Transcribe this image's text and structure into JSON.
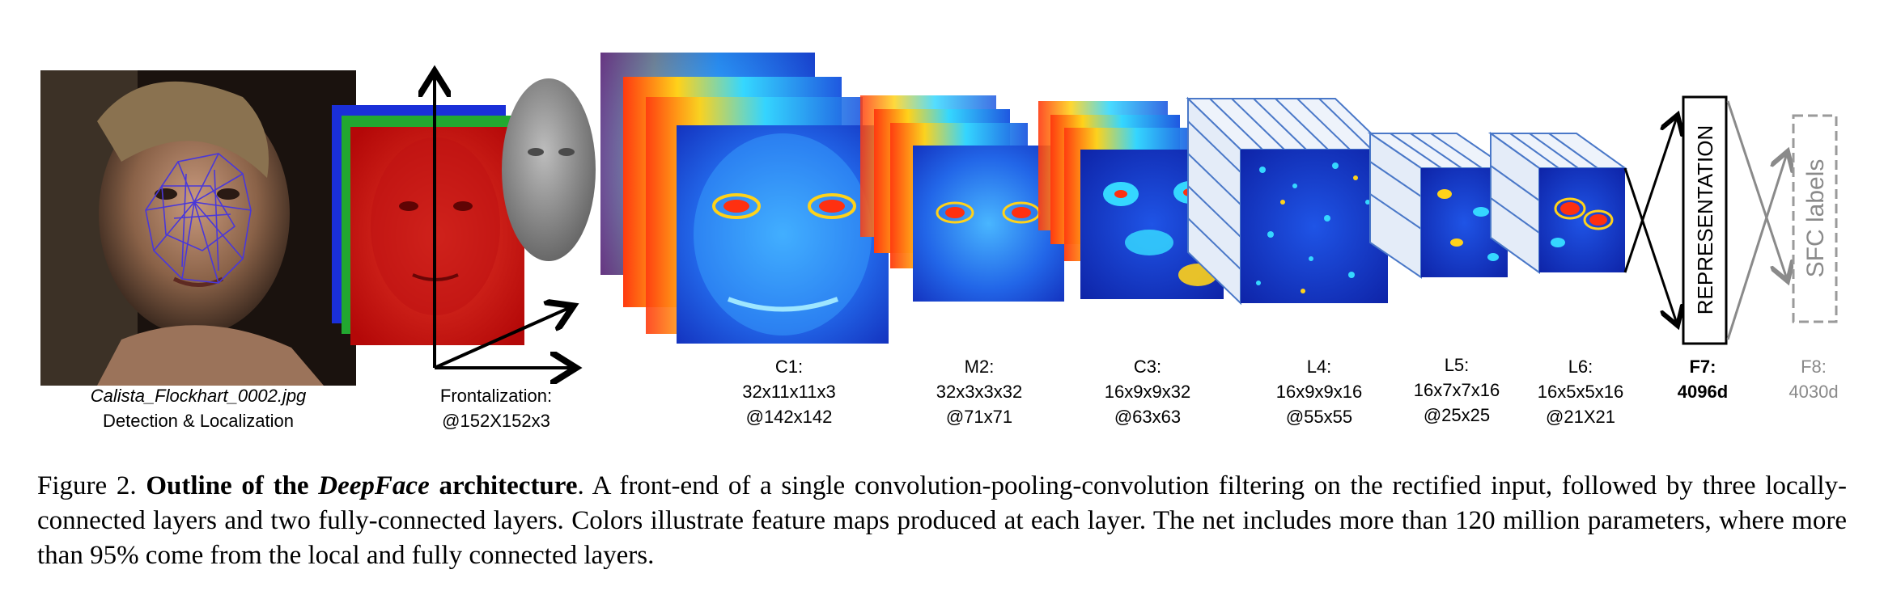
{
  "figure": {
    "input": {
      "filename": "Calista_Flockhart_0002.jpg",
      "label": "Detection & Localization"
    },
    "frontalization": {
      "label": "Frontalization:",
      "size": "@152X152x3"
    },
    "layers": [
      {
        "name": "C1:",
        "params": "32x11x11x3",
        "size": "@142x142"
      },
      {
        "name": "M2:",
        "params": "32x3x3x32",
        "size": "@71x71"
      },
      {
        "name": "C3:",
        "params": "16x9x9x32",
        "size": "@63x63"
      },
      {
        "name": "L4:",
        "params": "16x9x9x16",
        "size": "@55x55"
      },
      {
        "name": "L5:",
        "params": "16x7x7x16",
        "size": "@25x25"
      },
      {
        "name": "L6:",
        "params": "16x5x5x16",
        "size": "@21X21"
      }
    ],
    "f7": {
      "name": "F7:",
      "dim": "4096d",
      "box_text": "REPRESENTATION"
    },
    "f8": {
      "name": "F8:",
      "dim": "4030d",
      "box_text": "SFC labels"
    }
  },
  "caption": {
    "figure_number": "Figure 2.",
    "title_prefix": "Outline of the ",
    "title_italic": "DeepFace",
    "title_suffix": " architecture",
    "body": ". A front-end of a single convolution-pooling-convolution filtering on the rectified input, followed by three locally-connected layers and two fully-connected layers.  Colors illustrate feature maps produced at each layer.  The net includes more than 120 million parameters, where more than 95% come from the local and fully connected layers."
  },
  "colors": {
    "map_bg": "#1a3fd6",
    "map_mid": "#2fa6ff",
    "map_hot": "#e02010",
    "frontal_red": "#d81010",
    "layer_edge": "#4a78c8",
    "repr_border": "#000000",
    "sfc_border": "#9a9a9a"
  }
}
